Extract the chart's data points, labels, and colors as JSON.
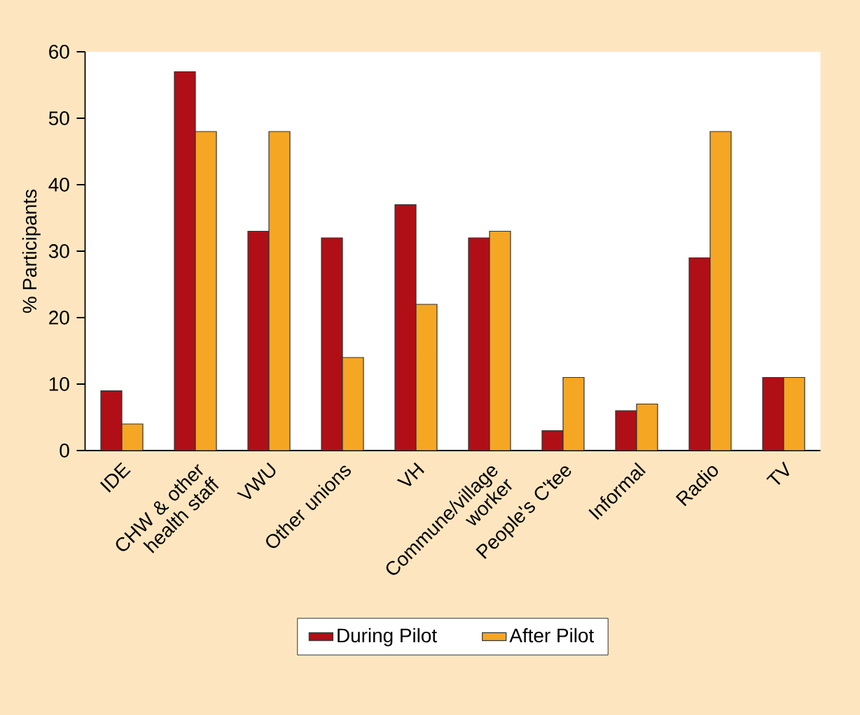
{
  "chart_data": {
    "type": "bar",
    "ylabel": "% Participants",
    "categories": [
      "IDE",
      "CHW & other health staff",
      "VWU",
      "Other unions",
      "VH",
      "Commune/village worker",
      "People's C'tee",
      "Informal",
      "Radio",
      "TV"
    ],
    "series": [
      {
        "name": "During Pilot",
        "color": "#b00f17",
        "values": [
          9,
          57,
          33,
          32,
          37,
          32,
          3,
          6,
          29,
          11
        ]
      },
      {
        "name": "After Pilot",
        "color": "#f5a623",
        "values": [
          4,
          48,
          48,
          14,
          22,
          33,
          11,
          7,
          48,
          11
        ]
      }
    ],
    "ylim": [
      0,
      60
    ],
    "yticks": [
      0,
      10,
      20,
      30,
      40,
      50,
      60
    ],
    "legend": "bottom",
    "grid": false
  }
}
